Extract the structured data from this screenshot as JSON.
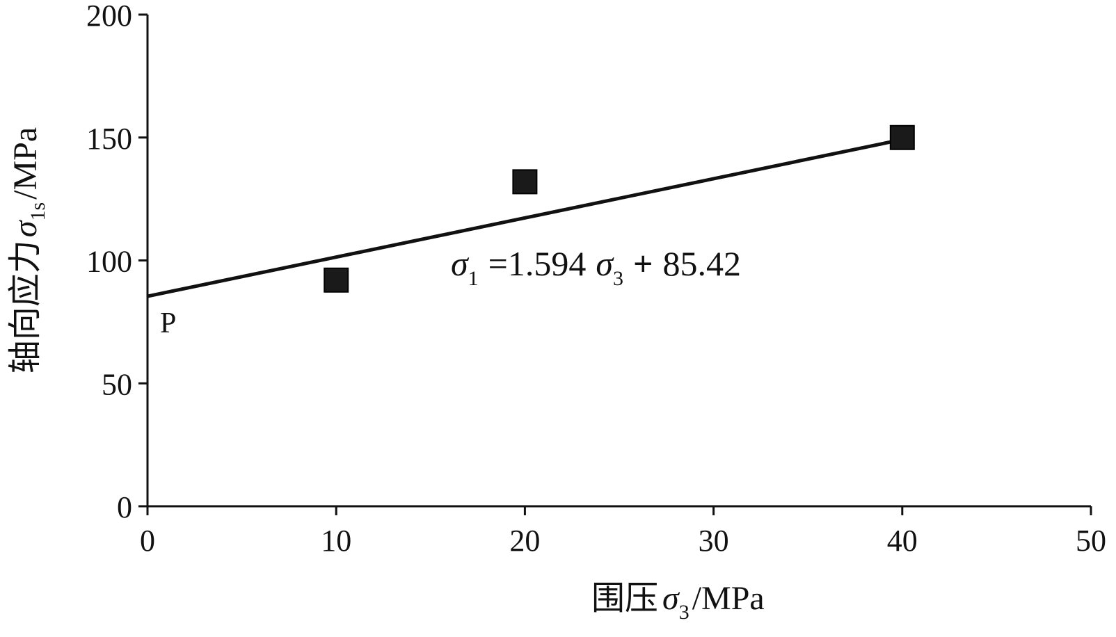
{
  "chart_data": {
    "type": "scatter",
    "x": [
      10,
      20,
      40
    ],
    "y": [
      92,
      132,
      150
    ],
    "xlim": [
      0,
      50
    ],
    "ylim": [
      0,
      200
    ],
    "xticks": [
      "0",
      "10",
      "20",
      "30",
      "40",
      "50"
    ],
    "yticks": [
      "0",
      "50",
      "100",
      "150",
      "200"
    ],
    "fit": {
      "slope": 1.594,
      "intercept": 85.42,
      "x_range": [
        0,
        40
      ],
      "equation_parts": {
        "sym1": "σ",
        "sub1": "1",
        "eq": "=1.594",
        "sym2": "σ",
        "sub2": "3",
        "plus": "+",
        "constant": "85.42"
      }
    },
    "point_label": "P",
    "xlabel": {
      "prefix": "围压",
      "symbol": "σ",
      "sub": "3",
      "unit": "/MPa"
    },
    "ylabel": {
      "prefix": "轴向应力",
      "symbol": "σ",
      "sub": "1s",
      "unit": "/MPa"
    },
    "grid": false,
    "marker_color": "#1a1a1a",
    "line_color": "#111111"
  }
}
